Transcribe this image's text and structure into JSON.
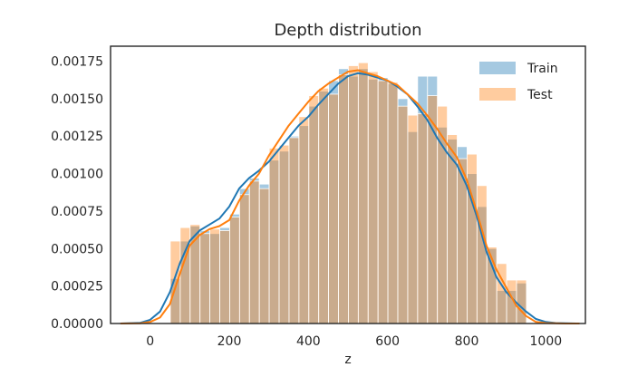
{
  "chart_data": {
    "type": "histogram",
    "title": "Depth distribution",
    "xlabel": "z",
    "ylabel": "",
    "xlim": [
      -100,
      1100
    ],
    "ylim": [
      0,
      0.00185
    ],
    "x_ticks": [
      0,
      200,
      400,
      600,
      800,
      1000
    ],
    "x_tick_labels": [
      "0",
      "200",
      "400",
      "600",
      "800",
      "1000"
    ],
    "y_ticks": [
      0,
      0.00025,
      0.0005,
      0.00075,
      0.001,
      0.00125,
      0.0015,
      0.00175
    ],
    "y_tick_labels": [
      "0.00000",
      "0.00025",
      "0.00050",
      "0.00075",
      "0.00100",
      "0.00125",
      "0.00150",
      "0.00175"
    ],
    "legend": {
      "position": "upper-right"
    },
    "grid": false,
    "series": [
      {
        "name": "Train",
        "color": "#1f77b4",
        "bar_alpha": 0.4,
        "bin_edges": [
          51,
          76,
          101,
          126,
          151,
          176,
          201,
          226,
          251,
          276,
          301,
          326,
          351,
          376,
          401,
          426,
          451,
          476,
          501,
          526,
          551,
          576,
          601,
          626,
          651,
          676,
          701,
          726,
          751,
          776,
          801,
          826,
          851,
          876,
          901,
          926,
          951
        ],
        "values": [
          0.0003,
          0.00055,
          0.00065,
          0.00062,
          0.0006,
          0.00064,
          0.00073,
          0.0009,
          0.00097,
          0.00093,
          0.00109,
          0.00115,
          0.00125,
          0.00132,
          0.00145,
          0.00155,
          0.00162,
          0.0017,
          0.00165,
          0.0017,
          0.00163,
          0.00164,
          0.0016,
          0.0015,
          0.00128,
          0.00165,
          0.00165,
          0.00131,
          0.00123,
          0.00118,
          0.001,
          0.00078,
          0.0005,
          0.00022,
          0.00022,
          0.00027
        ],
        "kde_x": [
          -75,
          -25,
          0,
          25,
          50,
          75,
          100,
          125,
          150,
          175,
          200,
          225,
          250,
          275,
          300,
          325,
          350,
          375,
          400,
          425,
          450,
          475,
          500,
          525,
          550,
          575,
          600,
          625,
          650,
          675,
          700,
          725,
          750,
          775,
          800,
          825,
          850,
          875,
          900,
          925,
          950,
          975,
          1000,
          1025,
          1050,
          1085
        ],
        "kde_y": [
          0,
          5e-06,
          2.5e-05,
          8e-05,
          0.00021,
          0.0004,
          0.00055,
          0.00062,
          0.00066,
          0.0007,
          0.00078,
          0.0009,
          0.00097,
          0.00102,
          0.00108,
          0.00116,
          0.00124,
          0.00132,
          0.00138,
          0.00146,
          0.00153,
          0.0016,
          0.00165,
          0.00167,
          0.00166,
          0.00164,
          0.00162,
          0.00158,
          0.00153,
          0.00145,
          0.00136,
          0.00124,
          0.00114,
          0.00106,
          0.00092,
          0.00072,
          0.00048,
          0.00031,
          0.00021,
          0.00014,
          8e-05,
          3e-05,
          1e-05,
          3e-06,
          1e-06,
          0
        ]
      },
      {
        "name": "Test",
        "color": "#ff7f0e",
        "bar_alpha": 0.4,
        "bin_edges": [
          51,
          76,
          101,
          126,
          151,
          176,
          201,
          226,
          251,
          276,
          301,
          326,
          351,
          376,
          401,
          426,
          451,
          476,
          501,
          526,
          551,
          576,
          601,
          626,
          651,
          676,
          701,
          726,
          751,
          776,
          801,
          826,
          851,
          876,
          901,
          926,
          951
        ],
        "values": [
          0.00055,
          0.00064,
          0.00066,
          0.0006,
          0.00063,
          0.00062,
          0.00071,
          0.00086,
          0.00095,
          0.0009,
          0.00117,
          0.00119,
          0.00124,
          0.00138,
          0.00152,
          0.00157,
          0.00153,
          0.00166,
          0.00172,
          0.00174,
          0.00168,
          0.00162,
          0.00161,
          0.00145,
          0.00139,
          0.0014,
          0.00152,
          0.00145,
          0.00126,
          0.0011,
          0.00113,
          0.00092,
          0.00051,
          0.0004,
          0.00029,
          0.00029
        ],
        "kde_x": [
          -75,
          -25,
          0,
          25,
          50,
          75,
          100,
          125,
          150,
          175,
          200,
          225,
          250,
          275,
          300,
          325,
          350,
          375,
          400,
          425,
          450,
          475,
          500,
          525,
          550,
          575,
          600,
          625,
          650,
          675,
          700,
          725,
          750,
          775,
          800,
          825,
          850,
          875,
          900,
          925,
          950,
          975,
          1000,
          1025,
          1050,
          1085
        ],
        "kde_y": [
          0,
          2e-06,
          1e-05,
          4e-05,
          0.00013,
          0.00033,
          0.00052,
          0.00059,
          0.00063,
          0.00065,
          0.00069,
          0.00082,
          0.00092,
          0.001,
          0.00112,
          0.00122,
          0.00132,
          0.0014,
          0.00148,
          0.00155,
          0.0016,
          0.00164,
          0.00168,
          0.00169,
          0.00167,
          0.00165,
          0.00162,
          0.00159,
          0.00153,
          0.00147,
          0.00139,
          0.0013,
          0.0012,
          0.00111,
          0.00096,
          0.00075,
          0.00052,
          0.00036,
          0.00024,
          0.00012,
          5e-05,
          1e-05,
          3e-06,
          1e-06,
          0,
          0
        ]
      }
    ]
  }
}
